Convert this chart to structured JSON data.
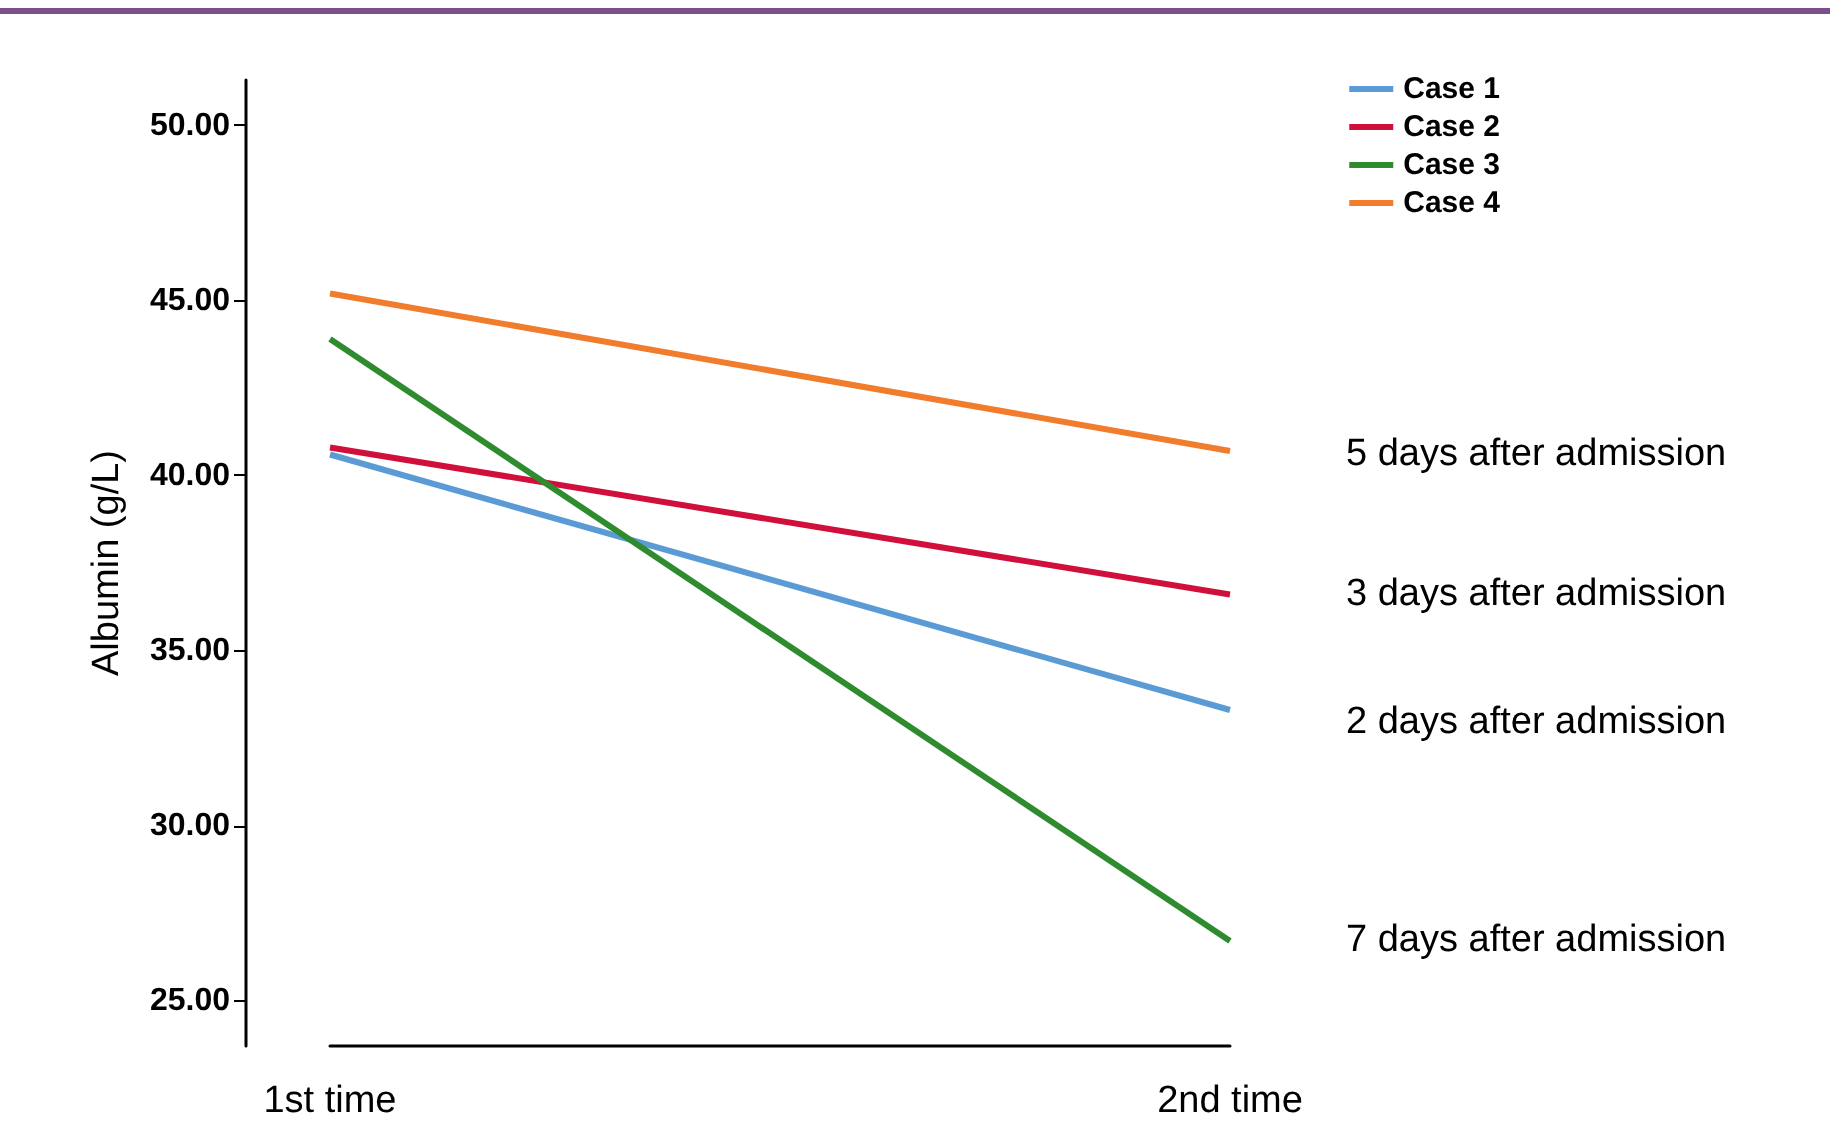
{
  "chart_data": {
    "type": "line",
    "ylabel": "Albumin (g/L)",
    "categories": [
      "1st time",
      "2nd time"
    ],
    "series": [
      {
        "name": "Case 1",
        "color": "#5b9bd5",
        "values": [
          40.6,
          33.3
        ]
      },
      {
        "name": "Case 2",
        "color": "#d0103a",
        "values": [
          40.8,
          36.6
        ]
      },
      {
        "name": "Case 3",
        "color": "#2e8b2e",
        "values": [
          43.9,
          26.7
        ]
      },
      {
        "name": "Case 4",
        "color": "#f07c2c",
        "values": [
          45.2,
          40.7
        ]
      }
    ],
    "ylim": [
      23.7,
      51.3
    ],
    "yticks": [
      {
        "value": 25,
        "label": "25.00"
      },
      {
        "value": 30,
        "label": "30.00"
      },
      {
        "value": 35,
        "label": "35.00"
      },
      {
        "value": 40,
        "label": "40.00"
      },
      {
        "value": 45,
        "label": "45.00"
      },
      {
        "value": 50,
        "label": "50.00"
      }
    ],
    "annotations": [
      "5 days after admission",
      "3 days after admission",
      "2 days after admission",
      "7 days after admission"
    ],
    "grid": false,
    "legend": "top right",
    "marker": "none",
    "line_style": "solid"
  }
}
